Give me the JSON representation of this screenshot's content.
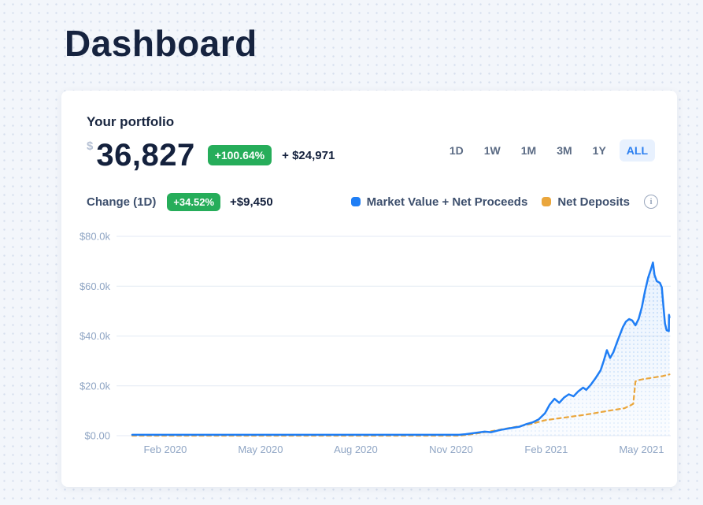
{
  "page": {
    "title": "Dashboard"
  },
  "portfolio": {
    "heading": "Your portfolio",
    "currency_symbol": "$",
    "value": "36,827",
    "total_gain_pct_badge": "+100.64%",
    "total_gain_abs": "+ $24,971",
    "day_change": {
      "label": "Change (1D)",
      "pct_badge": "+34.52%",
      "abs": "+$9,450"
    }
  },
  "range_selector": {
    "options": [
      "1D",
      "1W",
      "1M",
      "3M",
      "1Y",
      "ALL"
    ],
    "selected": "ALL"
  },
  "legend": {
    "items": [
      {
        "id": "market-value",
        "label": "Market Value + Net Proceeds",
        "color": "#1f7ef5"
      },
      {
        "id": "net-deposits",
        "label": "Net Deposits",
        "color": "#eaa63c"
      }
    ],
    "info_icon": "i"
  },
  "colors": {
    "accent_blue": "#1f7ef5",
    "accent_orange": "#eaa63c",
    "badge_green": "#26ad5a",
    "axis_text": "#8fa5c4",
    "gridline": "#e3eaf4",
    "dark_navy": "#14213d"
  },
  "chart_data": {
    "type": "line",
    "title": "",
    "xlabel": "",
    "ylabel": "",
    "x_unit": "months_since_Jan_2020",
    "ylim": [
      0,
      80
    ],
    "y_unit": "USD thousands",
    "grid": "horizontal",
    "legend_position": "top-right",
    "x_ticks": [
      {
        "t": 1.04,
        "label": "Feb 2020"
      },
      {
        "t": 4.04,
        "label": "May 2020"
      },
      {
        "t": 7.04,
        "label": "Aug 2020"
      },
      {
        "t": 10.04,
        "label": "Nov 2020"
      },
      {
        "t": 13.04,
        "label": "Feb 2021"
      },
      {
        "t": 16.04,
        "label": "May 2021"
      }
    ],
    "y_ticks": [
      {
        "v": 80,
        "label": "$80.0k"
      },
      {
        "v": 60,
        "label": "$60.0k"
      },
      {
        "v": 40,
        "label": "$40.0k"
      },
      {
        "v": 20,
        "label": "$20.0k"
      },
      {
        "v": 0,
        "label": "$0.00"
      }
    ],
    "series": [
      {
        "id": "market-value-line",
        "name": "Market Value + Net Proceeds",
        "color": "#1f7ef5",
        "style": "solid",
        "area_fill": true,
        "points": [
          [
            0,
            0.35
          ],
          [
            2,
            0.35
          ],
          [
            4,
            0.35
          ],
          [
            6,
            0.35
          ],
          [
            8,
            0.35
          ],
          [
            10.3,
            0.35
          ],
          [
            10.5,
            0.6
          ],
          [
            10.8,
            1.1
          ],
          [
            11.1,
            1.6
          ],
          [
            11.3,
            1.4
          ],
          [
            11.6,
            2.3
          ],
          [
            11.9,
            3.0
          ],
          [
            12.2,
            3.6
          ],
          [
            12.4,
            4.6
          ],
          [
            12.6,
            5.3
          ],
          [
            12.8,
            6.5
          ],
          [
            13.0,
            9.0
          ],
          [
            13.15,
            12.5
          ],
          [
            13.3,
            14.8
          ],
          [
            13.45,
            13.2
          ],
          [
            13.6,
            15.3
          ],
          [
            13.75,
            16.6
          ],
          [
            13.9,
            15.8
          ],
          [
            14.05,
            17.8
          ],
          [
            14.2,
            19.3
          ],
          [
            14.3,
            18.4
          ],
          [
            14.45,
            20.6
          ],
          [
            14.6,
            23.2
          ],
          [
            14.75,
            26.2
          ],
          [
            14.85,
            30.0
          ],
          [
            14.95,
            34.3
          ],
          [
            15.05,
            31.2
          ],
          [
            15.15,
            33.4
          ],
          [
            15.3,
            38.5
          ],
          [
            15.45,
            43.5
          ],
          [
            15.55,
            45.8
          ],
          [
            15.65,
            46.8
          ],
          [
            15.75,
            46.2
          ],
          [
            15.85,
            44.3
          ],
          [
            15.95,
            46.9
          ],
          [
            16.05,
            51.5
          ],
          [
            16.15,
            58.0
          ],
          [
            16.25,
            63.5
          ],
          [
            16.33,
            66.5
          ],
          [
            16.4,
            69.5
          ],
          [
            16.45,
            64.5
          ],
          [
            16.52,
            62.0
          ],
          [
            16.62,
            61.3
          ],
          [
            16.68,
            59.5
          ],
          [
            16.73,
            52.0
          ],
          [
            16.78,
            45.0
          ],
          [
            16.83,
            42.3
          ],
          [
            16.9,
            42.0
          ],
          [
            16.905,
            48.5
          ],
          [
            16.92,
            47.5
          ]
        ]
      },
      {
        "id": "net-deposits-line",
        "name": "Net Deposits",
        "color": "#eaa63c",
        "style": "dashed",
        "area_fill": false,
        "points": [
          [
            0,
            0
          ],
          [
            2,
            0
          ],
          [
            4,
            0
          ],
          [
            6,
            0
          ],
          [
            8,
            0
          ],
          [
            10.3,
            0
          ],
          [
            10.6,
            0.4
          ],
          [
            11.0,
            1.2
          ],
          [
            11.4,
            2.0
          ],
          [
            11.8,
            2.9
          ],
          [
            12.2,
            3.8
          ],
          [
            12.6,
            4.8
          ],
          [
            13.0,
            6.2
          ],
          [
            13.4,
            6.9
          ],
          [
            13.8,
            7.6
          ],
          [
            14.2,
            8.3
          ],
          [
            14.6,
            9.1
          ],
          [
            15.0,
            10.0
          ],
          [
            15.3,
            10.6
          ],
          [
            15.5,
            11.0
          ],
          [
            15.7,
            12.2
          ],
          [
            15.78,
            12.8
          ],
          [
            15.85,
            21.8
          ],
          [
            15.95,
            22.3
          ],
          [
            16.1,
            22.7
          ],
          [
            16.4,
            23.3
          ],
          [
            16.7,
            23.9
          ],
          [
            16.92,
            24.6
          ]
        ]
      }
    ]
  }
}
